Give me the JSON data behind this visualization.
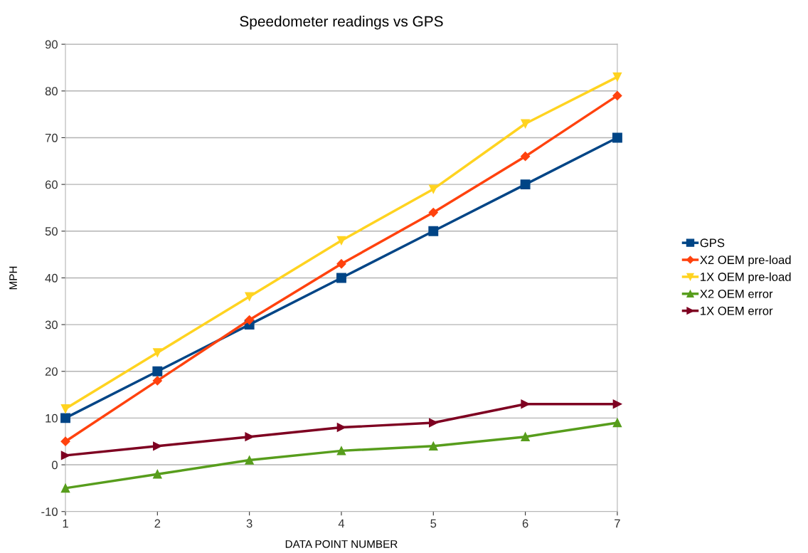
{
  "chart_data": {
    "type": "line",
    "title": "Speedometer readings vs GPS",
    "xlabel": "DATA POINT NUMBER",
    "ylabel": "MPH",
    "x": [
      1,
      2,
      3,
      4,
      5,
      6,
      7
    ],
    "series": [
      {
        "name": "GPS",
        "color": "#004586",
        "marker": "square",
        "values": [
          10,
          20,
          30,
          40,
          50,
          60,
          70
        ]
      },
      {
        "name": "X2 OEM pre-load",
        "color": "#ff420e",
        "marker": "diamond",
        "values": [
          5,
          18,
          31,
          43,
          54,
          66,
          79
        ]
      },
      {
        "name": "1X OEM pre-load",
        "color": "#ffd320",
        "marker": "triangle-down",
        "values": [
          12,
          24,
          36,
          48,
          59,
          73,
          83
        ]
      },
      {
        "name": "X2 OEM error",
        "color": "#579d1c",
        "marker": "triangle",
        "values": [
          -5,
          -2,
          1,
          3,
          4,
          6,
          9
        ]
      },
      {
        "name": "1X OEM error",
        "color": "#7e0021",
        "marker": "triangle-right",
        "values": [
          2,
          4,
          6,
          8,
          9,
          13,
          13
        ]
      }
    ],
    "xlim": [
      1,
      7
    ],
    "xticks": [
      1,
      2,
      3,
      4,
      5,
      6,
      7
    ],
    "ylim": [
      -10,
      90
    ],
    "yticks": [
      -10,
      0,
      10,
      20,
      30,
      40,
      50,
      60,
      70,
      80,
      90
    ],
    "grid": "y",
    "legend": "right",
    "line_style": "solid"
  }
}
